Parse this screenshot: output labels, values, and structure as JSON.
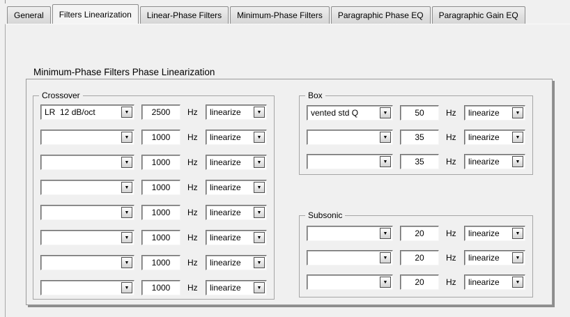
{
  "tabs": [
    {
      "label": "General",
      "active": false
    },
    {
      "label": "Filters Linearization",
      "active": true
    },
    {
      "label": "Linear-Phase Filters",
      "active": false
    },
    {
      "label": "Minimum-Phase Filters",
      "active": false
    },
    {
      "label": "Paragraphic Phase EQ",
      "active": false
    },
    {
      "label": "Paragraphic Gain EQ",
      "active": false
    }
  ],
  "heading": "Minimum-Phase Filters Phase Linearization",
  "labels": {
    "hz": "Hz",
    "dropdown_arrow": "▼"
  },
  "groups": [
    {
      "id": "crossover",
      "title": "Crossover",
      "rows": [
        {
          "filter": "LR  12 dB/oct",
          "freq": "2500",
          "action": "linearize"
        },
        {
          "filter": "",
          "freq": "1000",
          "action": "linearize"
        },
        {
          "filter": "",
          "freq": "1000",
          "action": "linearize"
        },
        {
          "filter": "",
          "freq": "1000",
          "action": "linearize"
        },
        {
          "filter": "",
          "freq": "1000",
          "action": "linearize"
        },
        {
          "filter": "",
          "freq": "1000",
          "action": "linearize"
        },
        {
          "filter": "",
          "freq": "1000",
          "action": "linearize"
        },
        {
          "filter": "",
          "freq": "1000",
          "action": "linearize"
        }
      ]
    },
    {
      "id": "box",
      "title": "Box",
      "rows": [
        {
          "filter": "vented std Q",
          "freq": "50",
          "action": "linearize"
        },
        {
          "filter": "",
          "freq": "35",
          "action": "linearize"
        },
        {
          "filter": "",
          "freq": "35",
          "action": "linearize"
        }
      ]
    },
    {
      "id": "subsonic",
      "title": "Subsonic",
      "rows": [
        {
          "filter": "",
          "freq": "20",
          "action": "linearize"
        },
        {
          "filter": "",
          "freq": "20",
          "action": "linearize"
        },
        {
          "filter": "",
          "freq": "20",
          "action": "linearize"
        }
      ]
    }
  ]
}
